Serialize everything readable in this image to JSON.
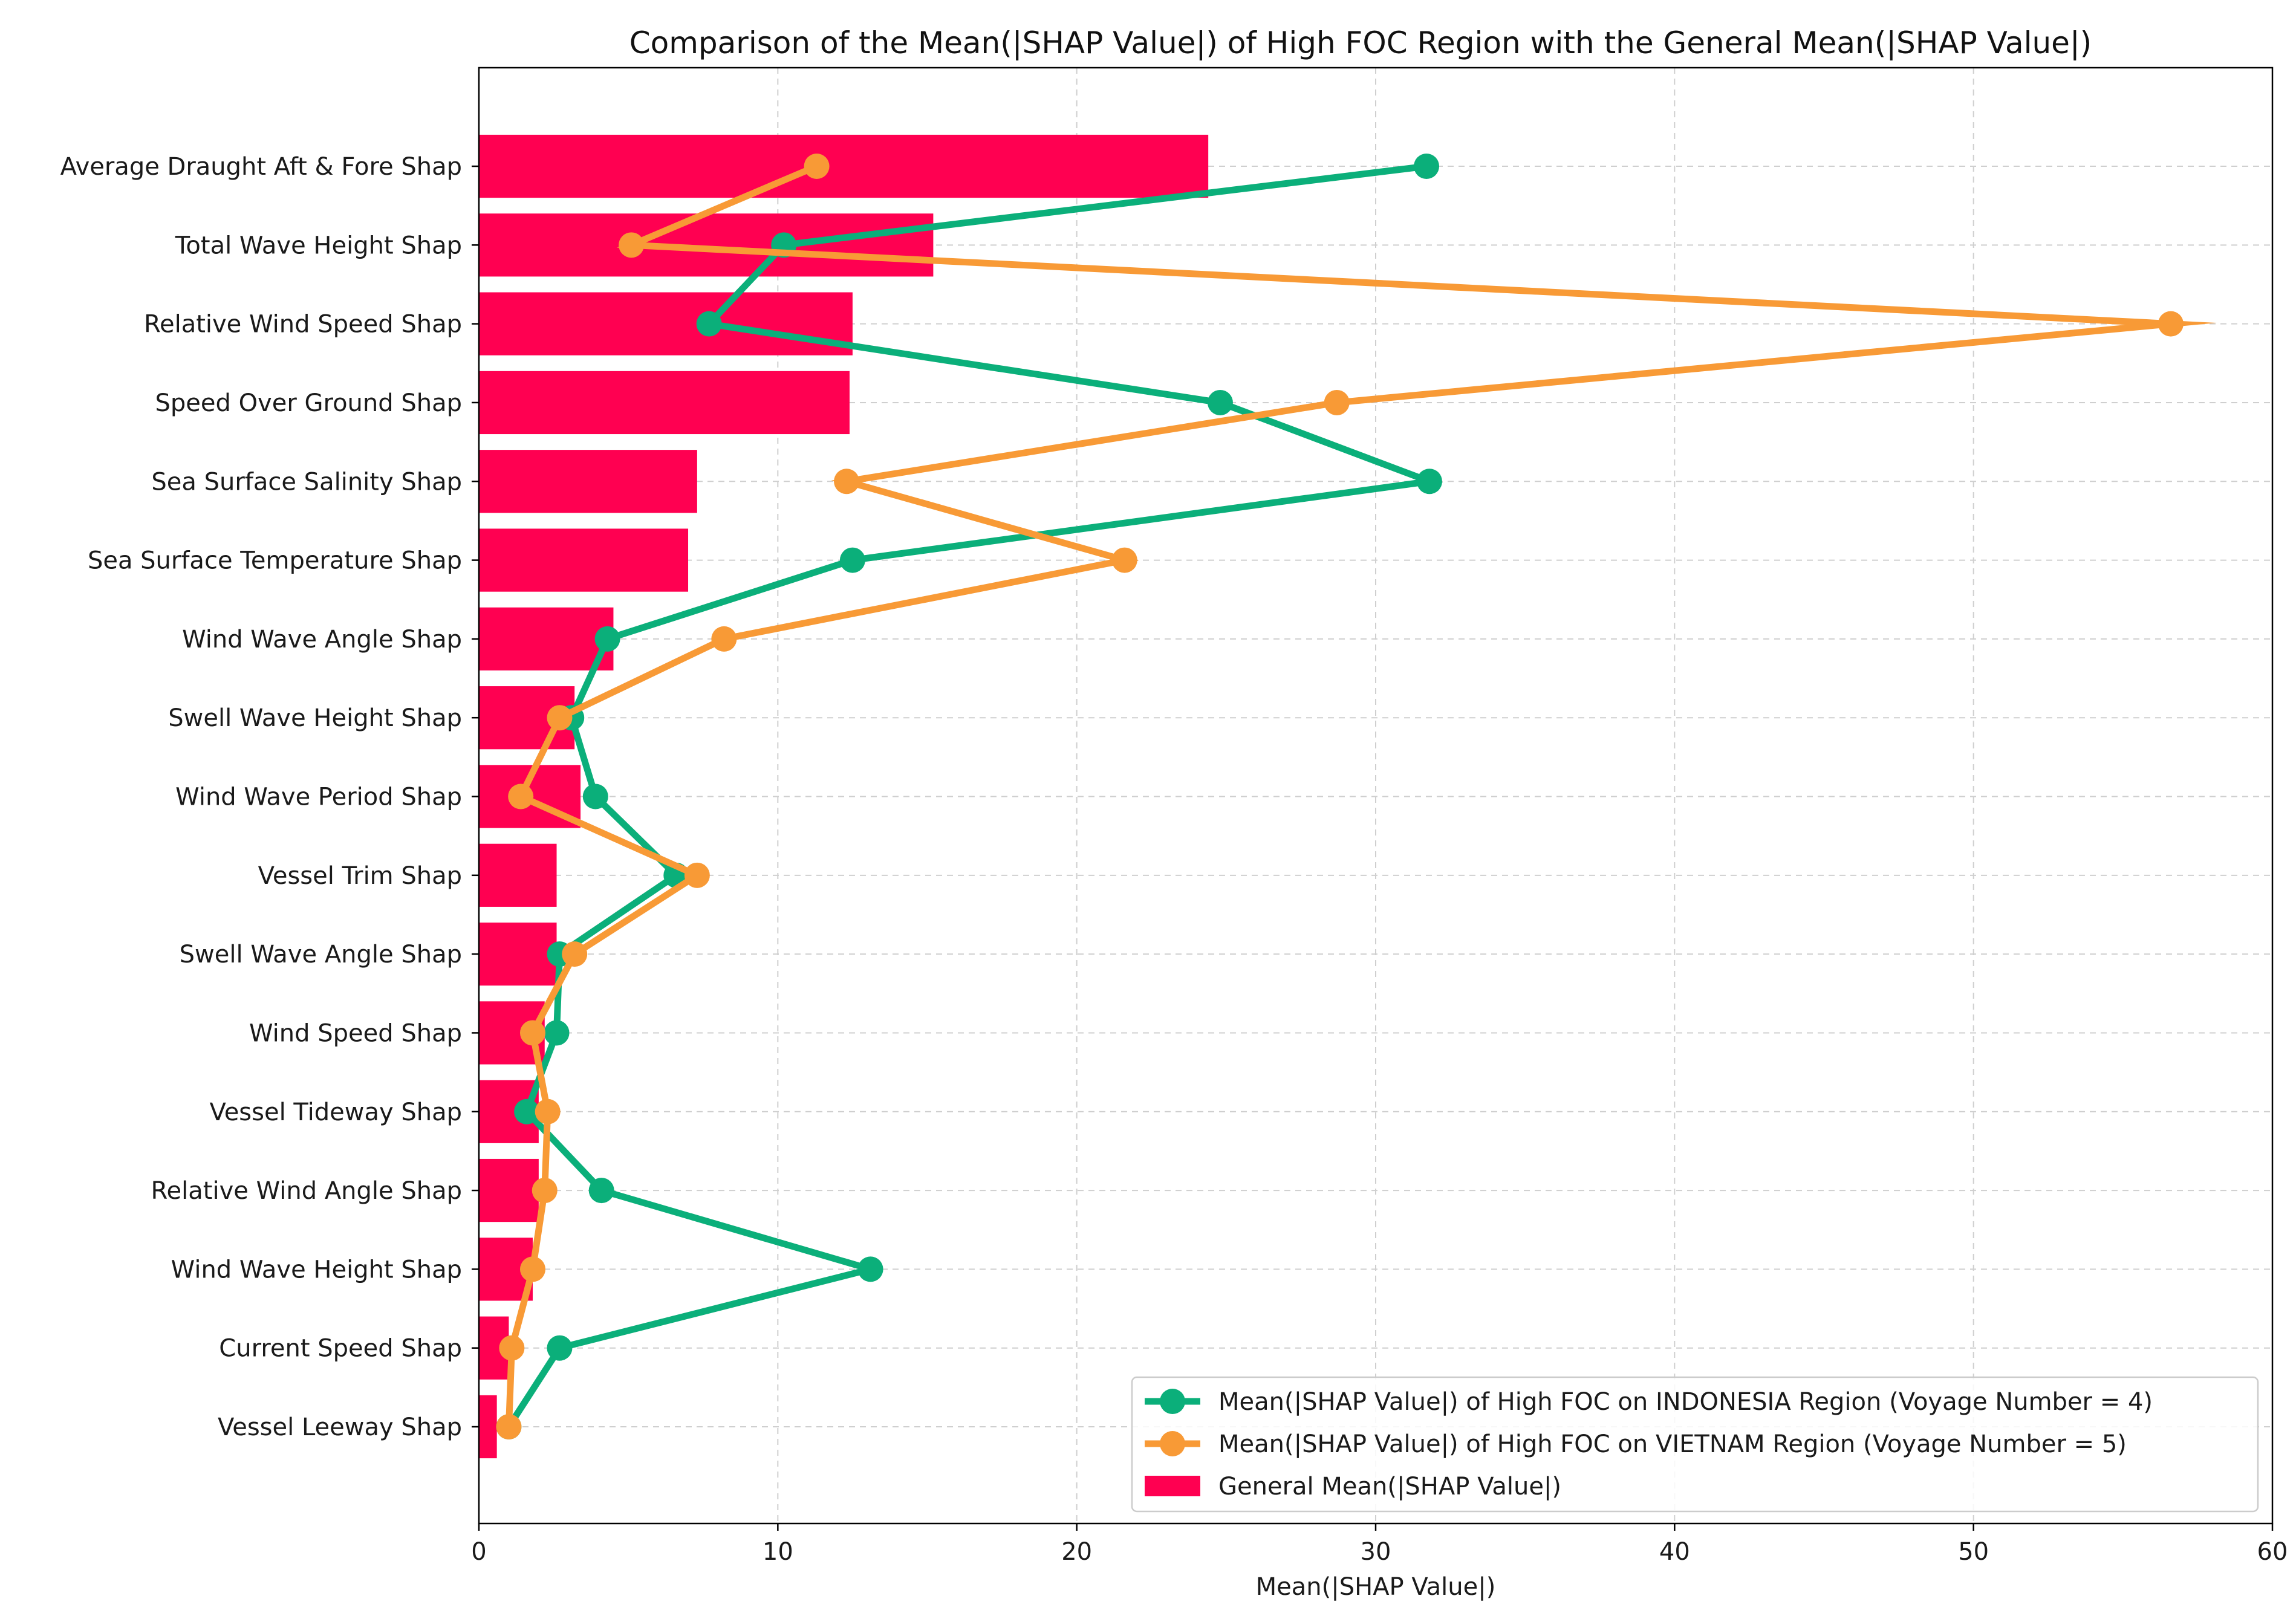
{
  "chart_data": {
    "type": "bar",
    "orientation": "horizontal",
    "title": "Comparison of the Mean(|SHAP Value|) of High FOC Region with the General Mean(|SHAP Value|)",
    "xlabel": "Mean(|SHAP Value|)",
    "ylabel": "",
    "xlim": [
      0,
      60
    ],
    "xticks": [
      0,
      10,
      20,
      30,
      40,
      50,
      60
    ],
    "grid": true,
    "legend_position": "lower-right",
    "categories": [
      "Average Draught Aft & Fore Shap",
      "Total Wave Height Shap",
      "Relative Wind Speed Shap",
      "Speed Over Ground Shap",
      "Sea Surface Salinity Shap",
      "Sea Surface Temperature Shap",
      "Wind Wave Angle Shap",
      "Swell Wave Height Shap",
      "Wind Wave Period Shap",
      "Vessel Trim Shap",
      "Swell Wave Angle Shap",
      "Wind Speed Shap",
      "Vessel Tideway Shap",
      "Relative Wind Angle Shap",
      "Wind Wave Height Shap",
      "Current Speed Shap",
      "Vessel Leeway Shap"
    ],
    "series": [
      {
        "name": "General Mean(|SHAP Value|)",
        "kind": "bar",
        "color": "#ff0051",
        "values": [
          24.4,
          15.2,
          12.5,
          12.4,
          7.3,
          7.0,
          4.5,
          3.2,
          3.4,
          2.6,
          2.6,
          2.2,
          2.0,
          2.0,
          1.8,
          1.0,
          0.6
        ]
      },
      {
        "name": "Mean(|SHAP Value|) of High FOC on INDONESIA Region (Voyage Number = 4)",
        "kind": "line",
        "color": "#0baf7a",
        "values": [
          31.7,
          10.2,
          7.7,
          24.8,
          31.8,
          12.5,
          4.3,
          3.1,
          3.9,
          6.6,
          2.7,
          2.6,
          1.6,
          4.1,
          13.1,
          2.7,
          1.0
        ]
      },
      {
        "name": "Mean(|SHAP Value|) of High FOC on VIETNAM Region (Voyage Number = 5)",
        "kind": "line",
        "color": "#f89a36",
        "values": [
          11.3,
          5.1,
          56.6,
          28.7,
          12.3,
          21.6,
          8.2,
          2.7,
          1.4,
          7.3,
          3.2,
          1.8,
          2.3,
          2.2,
          1.8,
          1.1,
          1.0
        ]
      }
    ]
  }
}
